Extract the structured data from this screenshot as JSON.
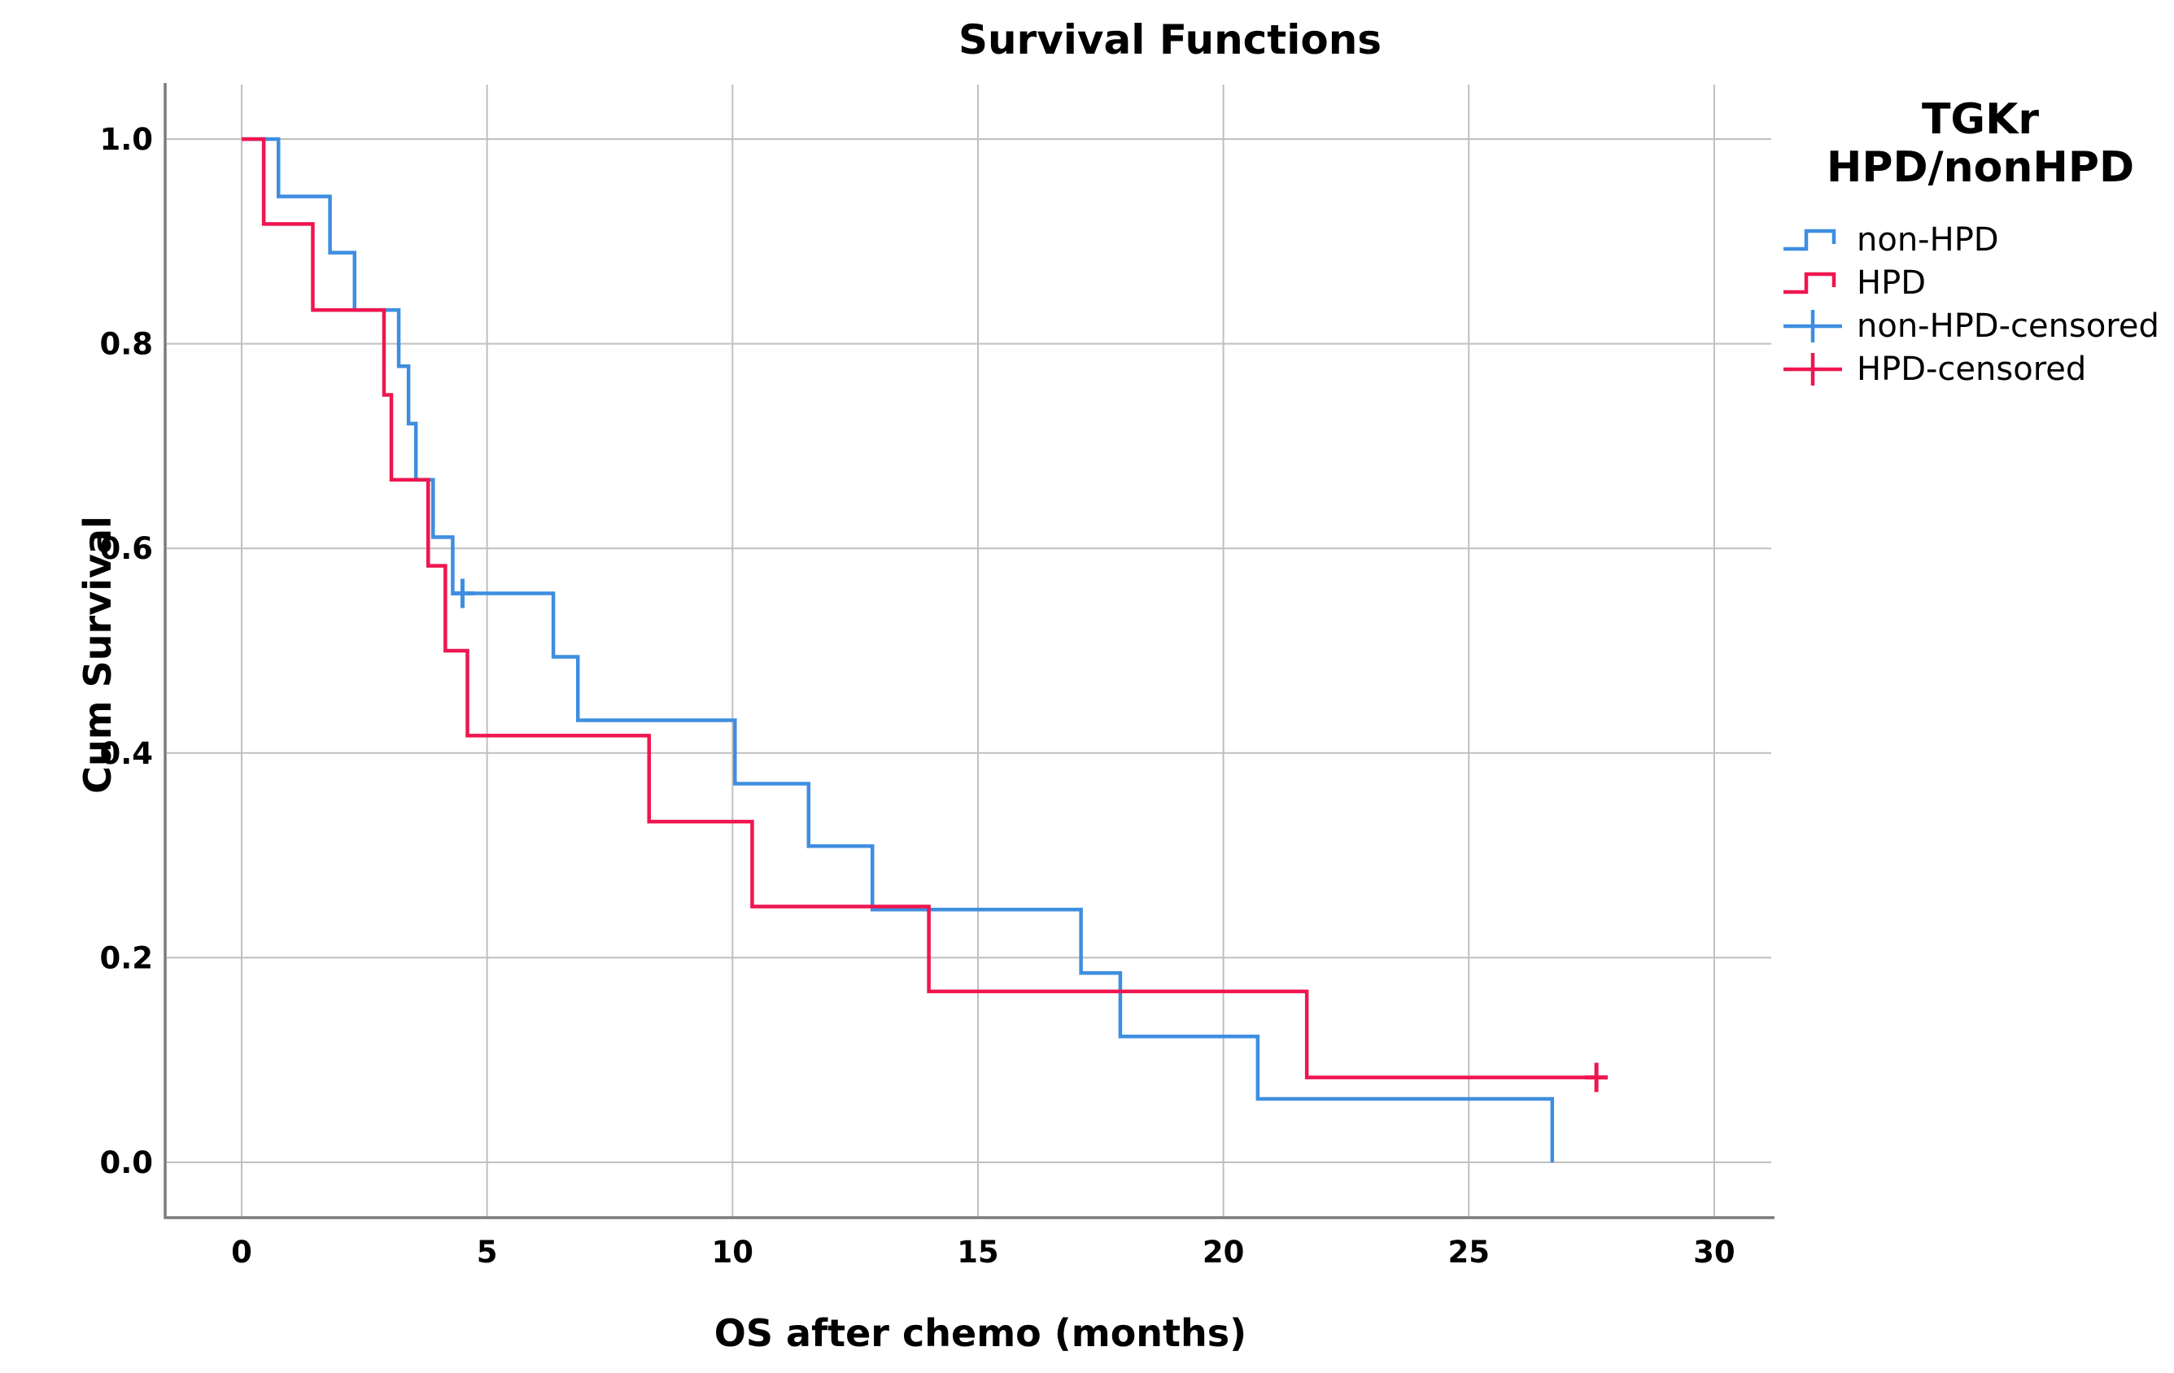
{
  "chart_data": {
    "type": "line",
    "subtype": "kaplan-meier-step",
    "title": "Survival Functions",
    "xlabel": "OS after chemo (months)",
    "ylabel": "Cum Survival",
    "grid": true,
    "legend_position": "right",
    "xlim": [
      -1.6,
      31.2
    ],
    "ylim": [
      -0.06,
      1.06
    ],
    "x_ticks": [
      0,
      5,
      10,
      15,
      20,
      25,
      30
    ],
    "x_tick_labels": [
      "0",
      "5",
      "10",
      "15",
      "20",
      "25",
      "30"
    ],
    "y_ticks": [
      0.0,
      0.2,
      0.4,
      0.6,
      0.8,
      1.0
    ],
    "y_tick_labels": [
      "0.0",
      "0.2",
      "0.4",
      "0.6",
      "0.8",
      "1.0"
    ],
    "series": [
      {
        "name": "non-HPD",
        "color": "#3e8ee0",
        "start": [
          0,
          1.0
        ],
        "events": [
          [
            0.75,
            0.944
          ],
          [
            1.8,
            0.889
          ],
          [
            2.3,
            0.833
          ],
          [
            3.2,
            0.778
          ],
          [
            3.4,
            0.722
          ],
          [
            3.55,
            0.667
          ],
          [
            3.9,
            0.611
          ],
          [
            4.3,
            0.556
          ],
          [
            6.35,
            0.494
          ],
          [
            6.85,
            0.432
          ],
          [
            10.05,
            0.37
          ],
          [
            11.55,
            0.309
          ],
          [
            12.85,
            0.247
          ],
          [
            17.1,
            0.185
          ],
          [
            17.9,
            0.123
          ],
          [
            20.7,
            0.062
          ],
          [
            26.7,
            0.0
          ]
        ],
        "end_time": 26.7,
        "censored": [
          [
            4.5,
            0.556
          ]
        ]
      },
      {
        "name": "HPD",
        "color": "#ef164f",
        "start": [
          0,
          1.0
        ],
        "events": [
          [
            0.45,
            0.917
          ],
          [
            1.45,
            0.833
          ],
          [
            2.9,
            0.75
          ],
          [
            3.05,
            0.667
          ],
          [
            3.8,
            0.583
          ],
          [
            4.15,
            0.5
          ],
          [
            4.6,
            0.417
          ],
          [
            8.3,
            0.333
          ],
          [
            10.4,
            0.25
          ],
          [
            14.0,
            0.167
          ],
          [
            21.7,
            0.083
          ]
        ],
        "end_time": 27.8,
        "censored": [
          [
            27.6,
            0.083
          ]
        ]
      }
    ]
  },
  "legend": {
    "title_lines": [
      "TGKr",
      "HPD/nonHPD"
    ],
    "items": [
      {
        "label": "non-HPD",
        "type": "line",
        "color": "#3e8ee0"
      },
      {
        "label": "HPD",
        "type": "line",
        "color": "#ef164f"
      },
      {
        "label": "non-HPD-censored",
        "type": "censored",
        "color": "#3e8ee0"
      },
      {
        "label": "HPD-censored",
        "type": "censored",
        "color": "#ef164f"
      }
    ]
  },
  "colors": {
    "grid": "#bfbfbf",
    "axis": "#7b7b7b",
    "text": "#000000",
    "background": "#ffffff"
  }
}
